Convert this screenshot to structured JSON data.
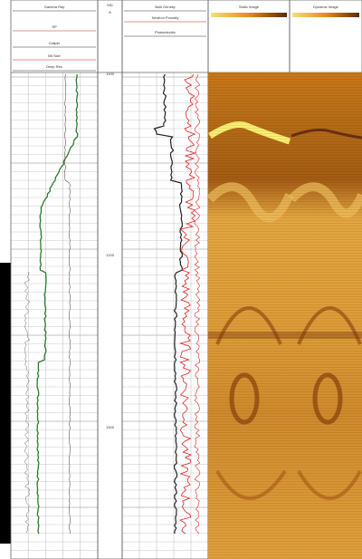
{
  "tracks": [
    {
      "headers": [
        "Gamma Ray",
        "SP",
        "Caliper",
        "Bit Size",
        "Deep Res"
      ]
    },
    {
      "headers": [
        "MD",
        "ft"
      ]
    },
    {
      "headers": [
        "Bulk Density",
        "Neutron Porosity",
        "Photoelectric"
      ]
    },
    {
      "headers": [
        "Static Image"
      ]
    },
    {
      "headers": [
        "Dynamic Image"
      ]
    }
  ],
  "depth_labels": [
    "1100",
    "1200",
    "1300"
  ]
}
